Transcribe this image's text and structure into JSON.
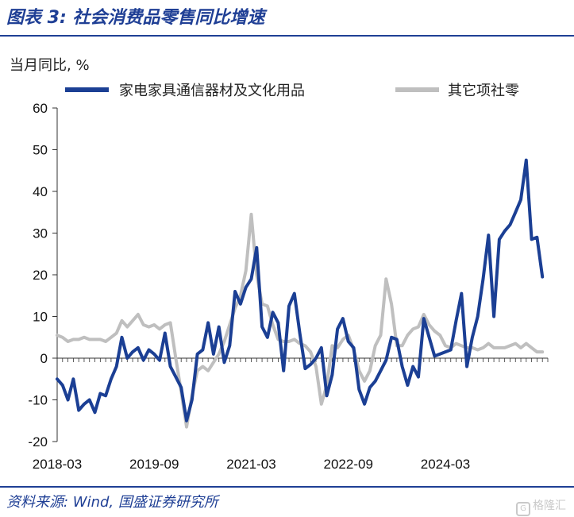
{
  "header": {
    "title": "图表 3:  社会消费品零售同比增速"
  },
  "footer": {
    "source": "资料来源: Wind, 国盛证券研究所",
    "watermark": "格隆汇",
    "watermark_icon": "G"
  },
  "colors": {
    "accent": "#1f3f95",
    "series1": "#1b3f94",
    "series2": "#bfbfbf"
  },
  "chart_data": {
    "type": "line",
    "unit_label": "当月同比, %",
    "ylim": [
      -20,
      60
    ],
    "yticks": [
      -20,
      -10,
      0,
      10,
      20,
      30,
      40,
      50,
      60
    ],
    "xlim": [
      "2018-03",
      "2025-10"
    ],
    "xticks": [
      "2018-03",
      "2019-09",
      "2021-03",
      "2022-09",
      "2024-03"
    ],
    "grid": false,
    "legend_position": "top",
    "series": [
      {
        "name": "家电家具通信器材及文化用品",
        "color": "#1b3f94",
        "points": [
          [
            "2018-03",
            -5
          ],
          [
            "2018-04",
            -6.5
          ],
          [
            "2018-05",
            -10
          ],
          [
            "2018-06",
            -5
          ],
          [
            "2018-07",
            -12.5
          ],
          [
            "2018-08",
            -11
          ],
          [
            "2018-09",
            -10
          ],
          [
            "2018-10",
            -13
          ],
          [
            "2018-11",
            -8.5
          ],
          [
            "2018-12",
            -9
          ],
          [
            "2019-01",
            -5
          ],
          [
            "2019-02",
            -2
          ],
          [
            "2019-03",
            5
          ],
          [
            "2019-04",
            0
          ],
          [
            "2019-05",
            1.5
          ],
          [
            "2019-06",
            2.5
          ],
          [
            "2019-07",
            -0.5
          ],
          [
            "2019-08",
            2
          ],
          [
            "2019-09",
            1
          ],
          [
            "2019-10",
            -0.5
          ],
          [
            "2019-11",
            6
          ],
          [
            "2019-12",
            -2
          ],
          [
            "2020-01",
            -4.5
          ],
          [
            "2020-02",
            -7
          ],
          [
            "2020-03",
            -15
          ],
          [
            "2020-04",
            -10
          ],
          [
            "2020-05",
            1
          ],
          [
            "2020-06",
            2
          ],
          [
            "2020-07",
            8.5
          ],
          [
            "2020-08",
            1
          ],
          [
            "2020-09",
            7.5
          ],
          [
            "2020-10",
            -1
          ],
          [
            "2020-11",
            3
          ],
          [
            "2020-12",
            16
          ],
          [
            "2021-01",
            13
          ],
          [
            "2021-02",
            17
          ],
          [
            "2021-03",
            19
          ],
          [
            "2021-04",
            26.5
          ],
          [
            "2021-05",
            7.5
          ],
          [
            "2021-06",
            5
          ],
          [
            "2021-07",
            11
          ],
          [
            "2021-08",
            8.5
          ],
          [
            "2021-09",
            -3
          ],
          [
            "2021-10",
            12.5
          ],
          [
            "2021-11",
            15.5
          ],
          [
            "2021-12",
            6
          ],
          [
            "2022-01",
            -2.5
          ],
          [
            "2022-02",
            -1.5
          ],
          [
            "2022-03",
            0
          ],
          [
            "2022-04",
            2.5
          ],
          [
            "2022-05",
            -9
          ],
          [
            "2022-06",
            -4
          ],
          [
            "2022-07",
            7
          ],
          [
            "2022-08",
            9.5
          ],
          [
            "2022-09",
            4
          ],
          [
            "2022-10",
            2.5
          ],
          [
            "2022-11",
            -7.5
          ],
          [
            "2022-12",
            -11
          ],
          [
            "2023-01",
            -7
          ],
          [
            "2023-02",
            -5.5
          ],
          [
            "2023-03",
            -3
          ],
          [
            "2023-04",
            -0.5
          ],
          [
            "2023-05",
            5
          ],
          [
            "2023-06",
            4.5
          ],
          [
            "2023-07",
            -2
          ],
          [
            "2023-08",
            -6.5
          ],
          [
            "2023-09",
            -2
          ],
          [
            "2023-10",
            -4.5
          ],
          [
            "2023-11",
            9.5
          ],
          [
            "2023-12",
            5
          ],
          [
            "2024-01",
            0.5
          ],
          [
            "2024-02",
            1
          ],
          [
            "2024-03",
            1.5
          ],
          [
            "2024-04",
            2
          ],
          [
            "2024-05",
            9
          ],
          [
            "2024-06",
            15.5
          ],
          [
            "2024-07",
            -2
          ],
          [
            "2024-08",
            5
          ],
          [
            "2024-09",
            10
          ],
          [
            "2024-10",
            19
          ],
          [
            "2024-11",
            29.5
          ],
          [
            "2024-12",
            10
          ],
          [
            "2025-01",
            28.5
          ],
          [
            "2025-02",
            30.5
          ],
          [
            "2025-03",
            32
          ],
          [
            "2025-04",
            35
          ],
          [
            "2025-05",
            38
          ],
          [
            "2025-06",
            47.5
          ],
          [
            "2025-07",
            28.5
          ],
          [
            "2025-08",
            29
          ],
          [
            "2025-09",
            19.5
          ]
        ]
      },
      {
        "name": "其它项社零",
        "color": "#bfbfbf",
        "points": [
          [
            "2018-03",
            5.5
          ],
          [
            "2018-04",
            5
          ],
          [
            "2018-05",
            4
          ],
          [
            "2018-06",
            4.5
          ],
          [
            "2018-07",
            4.5
          ],
          [
            "2018-08",
            5
          ],
          [
            "2018-09",
            4.5
          ],
          [
            "2018-10",
            4.5
          ],
          [
            "2018-11",
            4.5
          ],
          [
            "2018-12",
            4
          ],
          [
            "2019-01",
            5
          ],
          [
            "2019-02",
            6
          ],
          [
            "2019-03",
            9
          ],
          [
            "2019-04",
            7.5
          ],
          [
            "2019-05",
            9
          ],
          [
            "2019-06",
            10.5
          ],
          [
            "2019-07",
            8
          ],
          [
            "2019-08",
            7.5
          ],
          [
            "2019-09",
            8
          ],
          [
            "2019-10",
            7
          ],
          [
            "2019-11",
            8
          ],
          [
            "2019-12",
            8.5
          ],
          [
            "2020-01",
            0
          ],
          [
            "2020-02",
            -8
          ],
          [
            "2020-03",
            -16.5
          ],
          [
            "2020-04",
            -9
          ],
          [
            "2020-05",
            -3
          ],
          [
            "2020-06",
            -2
          ],
          [
            "2020-07",
            -3
          ],
          [
            "2020-08",
            -1
          ],
          [
            "2020-09",
            1
          ],
          [
            "2020-10",
            4
          ],
          [
            "2020-11",
            8
          ],
          [
            "2020-12",
            12
          ],
          [
            "2021-01",
            15
          ],
          [
            "2021-02",
            21
          ],
          [
            "2021-03",
            34.5
          ],
          [
            "2021-04",
            20
          ],
          [
            "2021-05",
            13
          ],
          [
            "2021-06",
            12.5
          ],
          [
            "2021-07",
            8
          ],
          [
            "2021-08",
            4.5
          ],
          [
            "2021-09",
            4
          ],
          [
            "2021-10",
            4
          ],
          [
            "2021-11",
            4.5
          ],
          [
            "2021-12",
            3.5
          ],
          [
            "2022-01",
            3
          ],
          [
            "2022-02",
            1.5
          ],
          [
            "2022-03",
            -2
          ],
          [
            "2022-04",
            -11
          ],
          [
            "2022-05",
            -6.5
          ],
          [
            "2022-06",
            3
          ],
          [
            "2022-07",
            2.5
          ],
          [
            "2022-08",
            4.5
          ],
          [
            "2022-09",
            5.5
          ],
          [
            "2022-10",
            2
          ],
          [
            "2022-11",
            -3
          ],
          [
            "2022-12",
            -5.5
          ],
          [
            "2023-01",
            -3
          ],
          [
            "2023-02",
            3
          ],
          [
            "2023-03",
            5.5
          ],
          [
            "2023-04",
            19
          ],
          [
            "2023-05",
            13
          ],
          [
            "2023-06",
            3
          ],
          [
            "2023-07",
            3
          ],
          [
            "2023-08",
            5.5
          ],
          [
            "2023-09",
            7
          ],
          [
            "2023-10",
            7.5
          ],
          [
            "2023-11",
            10.5
          ],
          [
            "2023-12",
            8
          ],
          [
            "2024-01",
            6.5
          ],
          [
            "2024-02",
            5.5
          ],
          [
            "2024-03",
            3
          ],
          [
            "2024-04",
            2.5
          ],
          [
            "2024-05",
            3.5
          ],
          [
            "2024-06",
            3
          ],
          [
            "2024-07",
            2.5
          ],
          [
            "2024-08",
            2.5
          ],
          [
            "2024-09",
            2
          ],
          [
            "2024-10",
            2.5
          ],
          [
            "2024-11",
            3.5
          ],
          [
            "2024-12",
            2.5
          ],
          [
            "2025-01",
            2.5
          ],
          [
            "2025-02",
            2.5
          ],
          [
            "2025-03",
            3
          ],
          [
            "2025-04",
            3.5
          ],
          [
            "2025-05",
            2.5
          ],
          [
            "2025-06",
            3.5
          ],
          [
            "2025-07",
            2.5
          ],
          [
            "2025-08",
            1.5
          ],
          [
            "2025-09",
            1.5
          ]
        ]
      }
    ]
  }
}
